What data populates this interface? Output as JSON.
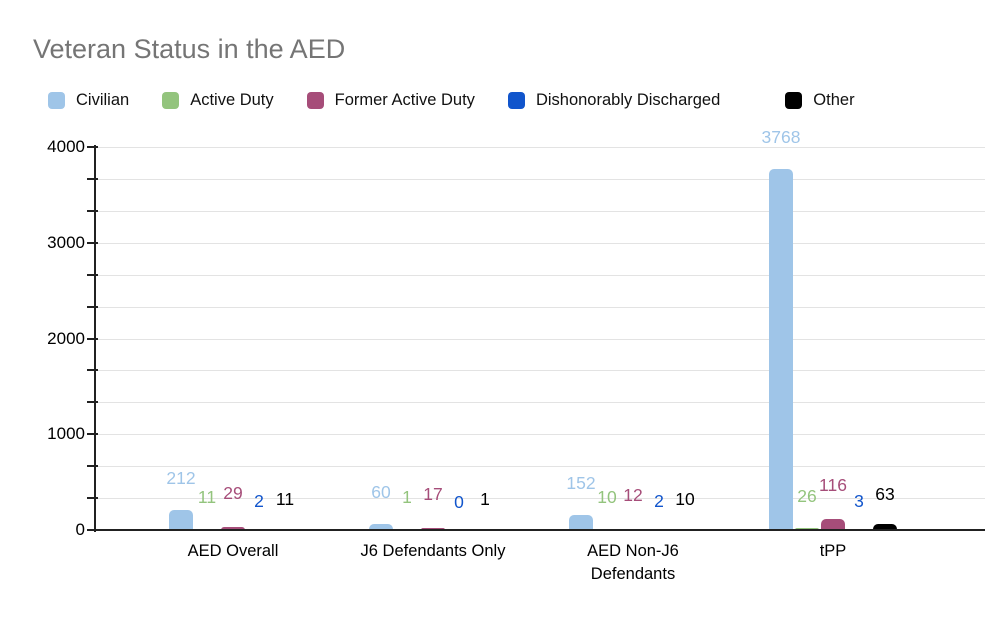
{
  "chart_data": {
    "type": "bar",
    "title": "Veteran Status in the AED",
    "title_color": "#757575",
    "categories": [
      "AED Overall",
      "J6 Defendants Only",
      "AED Non-J6 Defendants",
      "tPP"
    ],
    "series": [
      {
        "name": "Civilian",
        "color": "#9fc5e8",
        "values": [
          212,
          60,
          152,
          3768
        ]
      },
      {
        "name": "Active Duty",
        "color": "#93c47d",
        "values": [
          11,
          1,
          10,
          26
        ]
      },
      {
        "name": "Former Active Duty",
        "color": "#a64d79",
        "values": [
          29,
          17,
          12,
          116
        ]
      },
      {
        "name": "Dishonorably Discharged",
        "color": "#1155cc",
        "values": [
          2,
          0,
          2,
          3
        ]
      },
      {
        "name": "Other",
        "color": "#000000",
        "values": [
          11,
          1,
          10,
          63
        ]
      }
    ],
    "ylim": [
      0,
      4000
    ],
    "y_major_tick_labels": [
      "0",
      "1000",
      "2000",
      "3000",
      "4000"
    ],
    "y_minor_divisions_per_major": 3,
    "grid": true,
    "legend_position": "top",
    "data_labels": true
  }
}
